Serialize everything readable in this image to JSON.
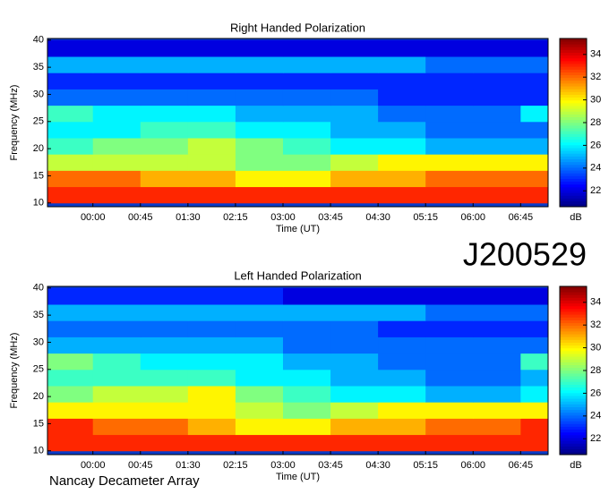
{
  "chart_data": [
    {
      "type": "heatmap",
      "title": "Right Handed Polarization",
      "xlabel": "Time (UT)",
      "ylabel": "Frequency (MHz)",
      "annotation": "J200529",
      "x_bins": [
        -43,
        0,
        45,
        90,
        135,
        180,
        225,
        270,
        315,
        360,
        405,
        431
      ],
      "y_bins": [
        10,
        13,
        16,
        19,
        22,
        25,
        28,
        31,
        34,
        37,
        40
      ],
      "values": [
        [
          33,
          33,
          33,
          33,
          33,
          33,
          33,
          33,
          33,
          33,
          33
        ],
        [
          32,
          32,
          31,
          31,
          30,
          30,
          31,
          31,
          32,
          32,
          32
        ],
        [
          29,
          29,
          29,
          29,
          28,
          28,
          29,
          30,
          30,
          30,
          30
        ],
        [
          27,
          28,
          28,
          29,
          28,
          27,
          26,
          26,
          25,
          25,
          25
        ],
        [
          26,
          26,
          27,
          27,
          26,
          26,
          25,
          25,
          24,
          24,
          24
        ],
        [
          27,
          26,
          26,
          26,
          25,
          25,
          25,
          24,
          24,
          24,
          26
        ],
        [
          24,
          24,
          24,
          24,
          24,
          24,
          24,
          23,
          23,
          23,
          23
        ],
        [
          23,
          23,
          23,
          23,
          23,
          23,
          23,
          23,
          23,
          23,
          23
        ],
        [
          25,
          25,
          25,
          25,
          25,
          25,
          25,
          25,
          24,
          24,
          24
        ],
        [
          22,
          22,
          22,
          22,
          22,
          22,
          22,
          22,
          22,
          22,
          22
        ]
      ],
      "xlim": [
        -43,
        431
      ],
      "ylim": [
        9.3,
        40.3
      ],
      "xticks": [
        {
          "value": 0,
          "label": "00:00"
        },
        {
          "value": 45,
          "label": "00:45"
        },
        {
          "value": 90,
          "label": "01:30"
        },
        {
          "value": 135,
          "label": "02:15"
        },
        {
          "value": 180,
          "label": "03:00"
        },
        {
          "value": 225,
          "label": "03:45"
        },
        {
          "value": 270,
          "label": "04:30"
        },
        {
          "value": 315,
          "label": "05:15"
        },
        {
          "value": 360,
          "label": "06:00"
        },
        {
          "value": 405,
          "label": "06:45"
        }
      ],
      "yticks": [
        10,
        15,
        20,
        25,
        30,
        35,
        40
      ],
      "colorbar": {
        "label": "dB",
        "lim": [
          20.6,
          35.4
        ],
        "ticks": [
          22,
          24,
          26,
          28,
          30,
          32,
          34
        ]
      }
    },
    {
      "type": "heatmap",
      "title": "Left Handed Polarization",
      "xlabel": "Time (UT)",
      "ylabel": "Frequency (MHz)",
      "annotation": "Nancay Decameter Array",
      "x_bins": [
        -43,
        0,
        45,
        90,
        135,
        180,
        225,
        270,
        315,
        360,
        405,
        431
      ],
      "y_bins": [
        10,
        13,
        16,
        19,
        22,
        25,
        28,
        31,
        34,
        37,
        40
      ],
      "values": [
        [
          33,
          33,
          33,
          33,
          33,
          33,
          33,
          33,
          33,
          33,
          33
        ],
        [
          33,
          32,
          32,
          31,
          30,
          30,
          31,
          31,
          32,
          32,
          33
        ],
        [
          30,
          30,
          30,
          30,
          29,
          28,
          29,
          30,
          30,
          30,
          30
        ],
        [
          28,
          29,
          29,
          30,
          28,
          27,
          26,
          26,
          25,
          25,
          26
        ],
        [
          27,
          27,
          27,
          27,
          26,
          26,
          25,
          25,
          24,
          24,
          25
        ],
        [
          28,
          27,
          26,
          26,
          26,
          25,
          25,
          24,
          24,
          24,
          27
        ],
        [
          25,
          25,
          25,
          25,
          25,
          24,
          24,
          24,
          24,
          24,
          24
        ],
        [
          24,
          24,
          24,
          24,
          24,
          24,
          24,
          23,
          23,
          23,
          23
        ],
        [
          25,
          25,
          25,
          25,
          25,
          25,
          25,
          25,
          24,
          24,
          24
        ],
        [
          23,
          23,
          23,
          23,
          23,
          22,
          22,
          22,
          22,
          22,
          22
        ]
      ],
      "xlim": [
        -43,
        431
      ],
      "ylim": [
        9.3,
        40.3
      ],
      "xticks": [
        {
          "value": 0,
          "label": "00:00"
        },
        {
          "value": 45,
          "label": "00:45"
        },
        {
          "value": 90,
          "label": "01:30"
        },
        {
          "value": 135,
          "label": "02:15"
        },
        {
          "value": 180,
          "label": "03:00"
        },
        {
          "value": 225,
          "label": "03:45"
        },
        {
          "value": 270,
          "label": "04:30"
        },
        {
          "value": 315,
          "label": "05:15"
        },
        {
          "value": 360,
          "label": "06:00"
        },
        {
          "value": 405,
          "label": "06:45"
        }
      ],
      "yticks": [
        10,
        15,
        20,
        25,
        30,
        35,
        40
      ],
      "colorbar": {
        "label": "dB",
        "lim": [
          20.6,
          35.4
        ],
        "ticks": [
          22,
          24,
          26,
          28,
          30,
          32,
          34
        ]
      }
    }
  ]
}
